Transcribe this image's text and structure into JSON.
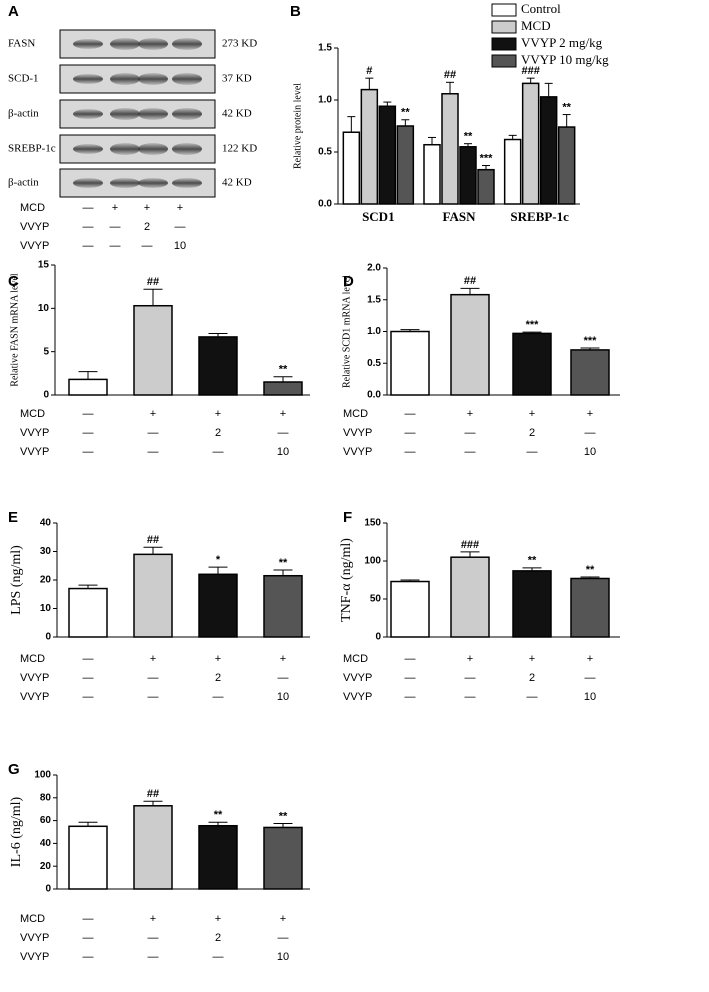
{
  "blot": {
    "panel": "A",
    "rows": [
      {
        "label": "FASN",
        "size": "273 KD"
      },
      {
        "label": "SCD-1",
        "size": "37 KD"
      },
      {
        "label": "β-actin",
        "size": "42 KD"
      },
      {
        "label": "SREBP-1c",
        "size": "122 KD"
      },
      {
        "label": "β-actin",
        "size": "42 KD"
      }
    ],
    "treatments": [
      {
        "label": "MCD",
        "cells": [
          "—",
          "+",
          "+",
          "+"
        ]
      },
      {
        "label": "VVYP",
        "cells": [
          "—",
          "—",
          "2",
          "—"
        ]
      },
      {
        "label": "VVYP",
        "cells": [
          "—",
          "—",
          "—",
          "10"
        ]
      }
    ]
  },
  "chart_data": [
    {
      "type": "grouped-bar",
      "panel": "B",
      "ylabel": "Relative protein level",
      "categories": [
        "SCD1",
        "FASN",
        "SREBP-1c"
      ],
      "ylim": [
        0,
        1.5
      ],
      "yticks": [
        {
          "value": 0,
          "label": "0.0"
        },
        {
          "value": 0.5,
          "label": "0.5"
        },
        {
          "value": 1,
          "label": "1.0"
        },
        {
          "value": 1.5,
          "label": "1.5"
        }
      ],
      "legend": "top-right",
      "series": [
        {
          "name": "Control",
          "color": "#ffffff",
          "values": [
            0.69,
            0.57,
            0.62
          ],
          "errors": [
            0.15,
            0.07,
            0.04
          ],
          "annotations": [
            null,
            null,
            null
          ]
        },
        {
          "name": "MCD",
          "color": "#cccccc",
          "values": [
            1.1,
            1.06,
            1.16
          ],
          "errors": [
            0.11,
            0.11,
            0.05
          ],
          "annotations": [
            "#",
            "##",
            "###"
          ]
        },
        {
          "name": "VVYP 2 mg/kg",
          "color": "#111111",
          "values": [
            0.94,
            0.55,
            1.03
          ],
          "errors": [
            0.04,
            0.03,
            0.13
          ],
          "annotations": [
            null,
            "**",
            null
          ]
        },
        {
          "name": "VVYP 10 mg/kg",
          "color": "#555555",
          "values": [
            0.75,
            0.33,
            0.74
          ],
          "errors": [
            0.06,
            0.04,
            0.12
          ],
          "annotations": [
            "**",
            "***",
            "**"
          ]
        }
      ]
    },
    {
      "type": "bar",
      "panel": "C",
      "ylabel": "Relative FASN mRNA level",
      "ylim": [
        0,
        15
      ],
      "yticks": [
        0,
        5,
        10,
        15
      ],
      "values": [
        1.8,
        10.3,
        6.7,
        1.5
      ],
      "errors": [
        0.9,
        1.9,
        0.4,
        0.6
      ],
      "colors": [
        "#ffffff",
        "#cccccc",
        "#111111",
        "#555555"
      ],
      "annotations": [
        null,
        "##",
        null,
        "**"
      ],
      "treatments": [
        {
          "label": "MCD",
          "cells": [
            "—",
            "+",
            "+",
            "+"
          ]
        },
        {
          "label": "VVYP",
          "cells": [
            "—",
            "—",
            "2",
            "—"
          ]
        },
        {
          "label": "VVYP",
          "cells": [
            "—",
            "—",
            "—",
            "10"
          ]
        }
      ]
    },
    {
      "type": "bar",
      "panel": "D",
      "ylabel": "Relative SCD1 mRNA level",
      "ylim": [
        0,
        2
      ],
      "yticks": [
        {
          "value": 0,
          "label": "0.0"
        },
        {
          "value": 0.5,
          "label": "0.5"
        },
        {
          "value": 1,
          "label": "1.0"
        },
        {
          "value": 1.5,
          "label": "1.5"
        },
        {
          "value": 2,
          "label": "2.0"
        }
      ],
      "values": [
        1.0,
        1.58,
        0.97,
        0.71
      ],
      "errors": [
        0.03,
        0.1,
        0.02,
        0.03
      ],
      "colors": [
        "#ffffff",
        "#cccccc",
        "#111111",
        "#555555"
      ],
      "annotations": [
        null,
        "##",
        "***",
        "***"
      ],
      "treatments": [
        {
          "label": "MCD",
          "cells": [
            "—",
            "+",
            "+",
            "+"
          ]
        },
        {
          "label": "VVYP",
          "cells": [
            "—",
            "—",
            "2",
            "—"
          ]
        },
        {
          "label": "VVYP",
          "cells": [
            "—",
            "—",
            "—",
            "10"
          ]
        }
      ]
    },
    {
      "type": "bar",
      "panel": "E",
      "ylabel": "LPS (ng/ml)",
      "ylim": [
        0,
        40
      ],
      "yticks": [
        0,
        10,
        20,
        30,
        40
      ],
      "values": [
        17,
        29,
        22,
        21.5
      ],
      "errors": [
        1.2,
        2.5,
        2.5,
        2
      ],
      "colors": [
        "#ffffff",
        "#cccccc",
        "#111111",
        "#555555"
      ],
      "annotations": [
        null,
        "##",
        "*",
        "**"
      ],
      "treatments": [
        {
          "label": "MCD",
          "cells": [
            "—",
            "+",
            "+",
            "+"
          ]
        },
        {
          "label": "VVYP",
          "cells": [
            "—",
            "—",
            "2",
            "—"
          ]
        },
        {
          "label": "VVYP",
          "cells": [
            "—",
            "—",
            "—",
            "10"
          ]
        }
      ]
    },
    {
      "type": "bar",
      "panel": "F",
      "ylabel": "TNF-α (ng/ml)",
      "ylim": [
        0,
        150
      ],
      "yticks": [
        0,
        50,
        100,
        150
      ],
      "values": [
        73,
        105,
        87,
        77
      ],
      "errors": [
        2,
        7,
        4,
        2
      ],
      "colors": [
        "#ffffff",
        "#cccccc",
        "#111111",
        "#555555"
      ],
      "annotations": [
        null,
        "###",
        "**",
        "**"
      ],
      "treatments": [
        {
          "label": "MCD",
          "cells": [
            "—",
            "+",
            "+",
            "+"
          ]
        },
        {
          "label": "VVYP",
          "cells": [
            "—",
            "—",
            "2",
            "—"
          ]
        },
        {
          "label": "VVYP",
          "cells": [
            "—",
            "—",
            "—",
            "10"
          ]
        }
      ]
    },
    {
      "type": "bar",
      "panel": "G",
      "ylabel": "IL-6 (ng/ml)",
      "ylim": [
        0,
        100
      ],
      "yticks": [
        0,
        20,
        40,
        60,
        80,
        100
      ],
      "values": [
        55,
        73,
        55.5,
        54
      ],
      "errors": [
        3.5,
        4,
        3,
        3.5
      ],
      "colors": [
        "#ffffff",
        "#cccccc",
        "#111111",
        "#555555"
      ],
      "annotations": [
        null,
        "##",
        "**",
        "**"
      ],
      "treatments": [
        {
          "label": "MCD",
          "cells": [
            "—",
            "+",
            "+",
            "+"
          ]
        },
        {
          "label": "VVYP",
          "cells": [
            "—",
            "—",
            "2",
            "—"
          ]
        },
        {
          "label": "VVYP",
          "cells": [
            "—",
            "—",
            "—",
            "10"
          ]
        }
      ]
    }
  ]
}
